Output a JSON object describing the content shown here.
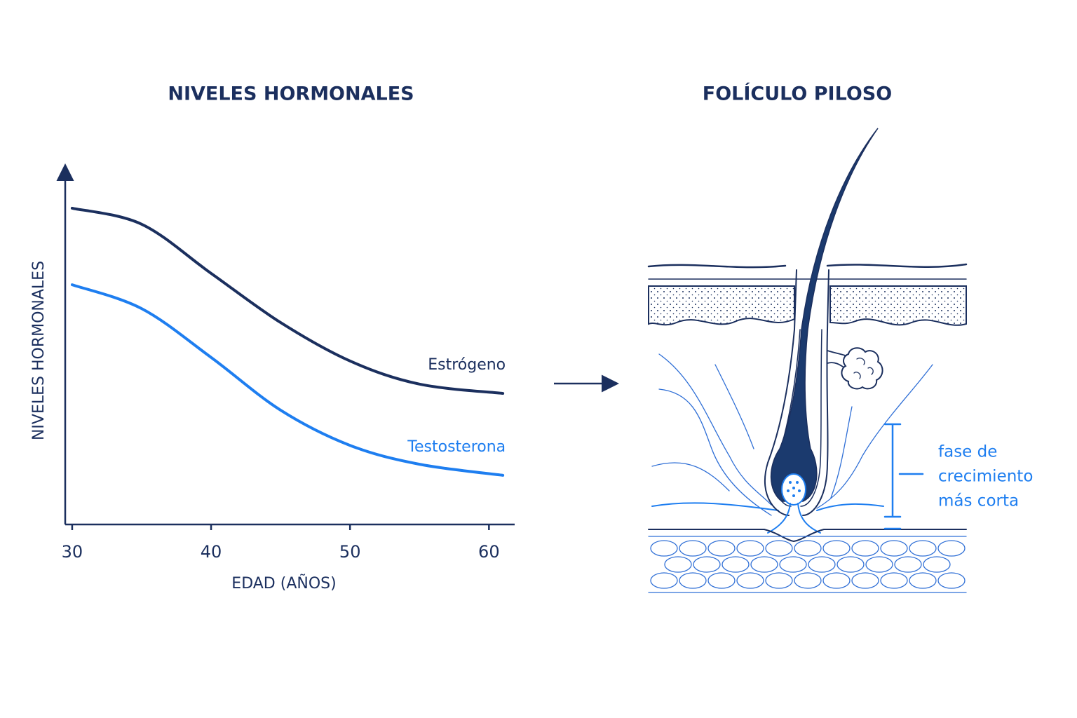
{
  "chart_data": {
    "type": "line",
    "title": "NIVELES HORMONALES",
    "x_label": "EDAD (AÑOS)",
    "y_label": "NIVELES HORMONALES",
    "x": [
      30,
      35,
      40,
      45,
      50,
      55,
      61
    ],
    "series": [
      {
        "name": "Estrógeno",
        "color": "#1b2f5e",
        "values": [
          88.8,
          84.3,
          70.5,
          56.7,
          45.9,
          39.4,
          36.8
        ]
      },
      {
        "name": "Testosterona",
        "color": "#1e7ef0",
        "values": [
          67.3,
          60.6,
          46.9,
          32.1,
          22.2,
          16.9,
          13.8
        ]
      }
    ],
    "xlim": [
      29.6,
      61.8
    ],
    "ylim": [
      0,
      100
    ],
    "xticks": [
      30,
      40,
      50,
      60
    ],
    "grid": false
  },
  "diagram": {
    "title": "FOLÍCULO PILOSO",
    "annotation": [
      "fase de",
      "crecimiento",
      "más corta"
    ]
  }
}
